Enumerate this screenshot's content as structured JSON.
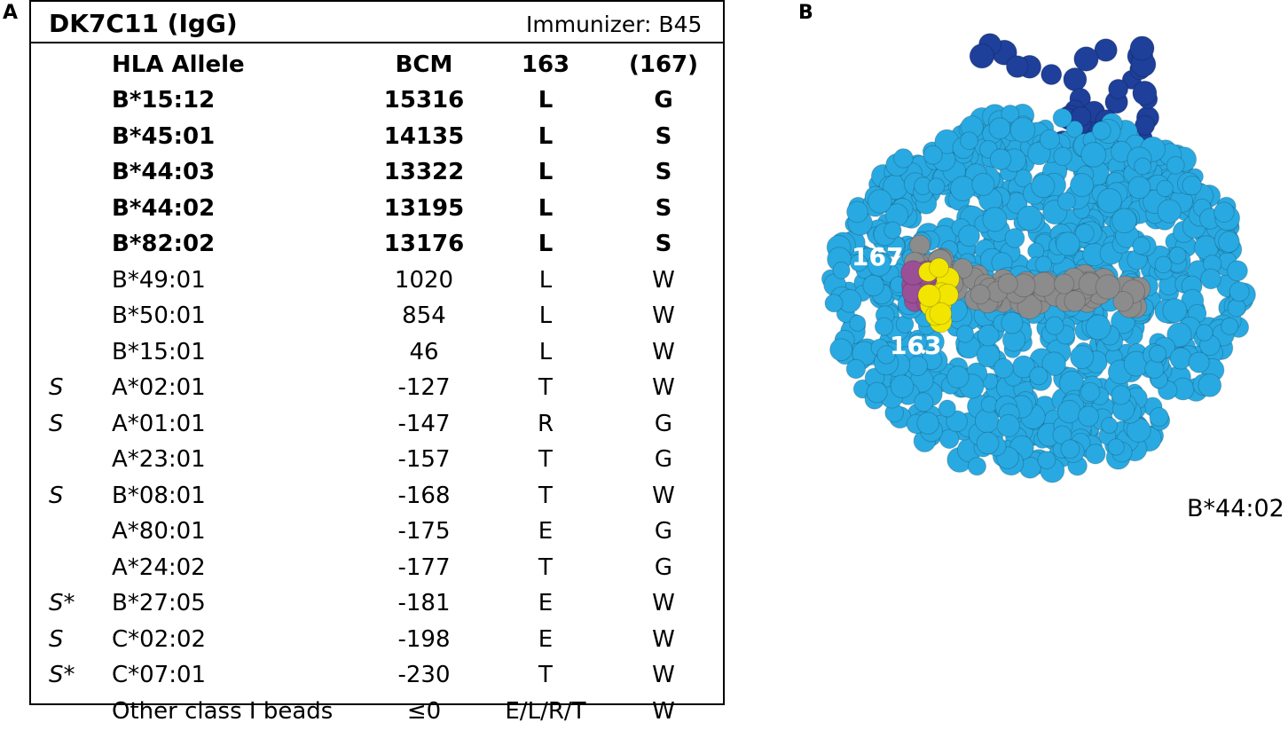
{
  "panels": {
    "a_label": "A",
    "b_label": "B"
  },
  "table": {
    "title": "DK7C11 (IgG)",
    "immunizer": "Immunizer: B45",
    "headers": {
      "allele": "HLA Allele",
      "bcm": "BCM",
      "pos163": "163",
      "pos167": "(167)"
    },
    "rows": [
      {
        "flag": "",
        "allele": "B*15:12",
        "bcm": "15316",
        "p163": "L",
        "p167": "G",
        "bold": true
      },
      {
        "flag": "",
        "allele": "B*45:01",
        "bcm": "14135",
        "p163": "L",
        "p167": "S",
        "bold": true
      },
      {
        "flag": "",
        "allele": "B*44:03",
        "bcm": "13322",
        "p163": "L",
        "p167": "S",
        "bold": true
      },
      {
        "flag": "",
        "allele": "B*44:02",
        "bcm": "13195",
        "p163": "L",
        "p167": "S",
        "bold": true
      },
      {
        "flag": "",
        "allele": "B*82:02",
        "bcm": "13176",
        "p163": "L",
        "p167": "S",
        "bold": true
      },
      {
        "flag": "",
        "allele": "B*49:01",
        "bcm": "1020",
        "p163": "L",
        "p167": "W",
        "bold": false
      },
      {
        "flag": "",
        "allele": "B*50:01",
        "bcm": "854",
        "p163": "L",
        "p167": "W",
        "bold": false
      },
      {
        "flag": "",
        "allele": "B*15:01",
        "bcm": "46",
        "p163": "L",
        "p167": "W",
        "bold": false
      },
      {
        "flag": "S",
        "allele": "A*02:01",
        "bcm": "-127",
        "p163": "T",
        "p167": "W",
        "bold": false
      },
      {
        "flag": "S",
        "allele": "A*01:01",
        "bcm": "-147",
        "p163": "R",
        "p167": "G",
        "bold": false
      },
      {
        "flag": "",
        "allele": "A*23:01",
        "bcm": "-157",
        "p163": "T",
        "p167": "G",
        "bold": false
      },
      {
        "flag": "S",
        "allele": "B*08:01",
        "bcm": "-168",
        "p163": "T",
        "p167": "W",
        "bold": false
      },
      {
        "flag": "",
        "allele": "A*80:01",
        "bcm": "-175",
        "p163": "E",
        "p167": "G",
        "bold": false
      },
      {
        "flag": "",
        "allele": "A*24:02",
        "bcm": "-177",
        "p163": "T",
        "p167": "G",
        "bold": false
      },
      {
        "flag": "S*",
        "allele": "B*27:05",
        "bcm": "-181",
        "p163": "E",
        "p167": "W",
        "bold": false
      },
      {
        "flag": "S",
        "allele": "C*02:02",
        "bcm": "-198",
        "p163": "E",
        "p167": "W",
        "bold": false
      },
      {
        "flag": "S*",
        "allele": "C*07:01",
        "bcm": "-230",
        "p163": "T",
        "p167": "W",
        "bold": false
      },
      {
        "flag": "",
        "allele": "Other class I beads",
        "bcm": "≤0",
        "p163": "E/L/R/T",
        "p167": "W",
        "bold": false
      }
    ]
  },
  "structure": {
    "label_167": "167",
    "label_163": "163",
    "allele_caption": "B*44:02",
    "colors": {
      "molecule": "#29a9e1",
      "beta2m": "#1e3f9a",
      "peptide": "#8c8c8c",
      "residue_163": "#f2e600",
      "residue_167": "#9b4f96"
    }
  }
}
